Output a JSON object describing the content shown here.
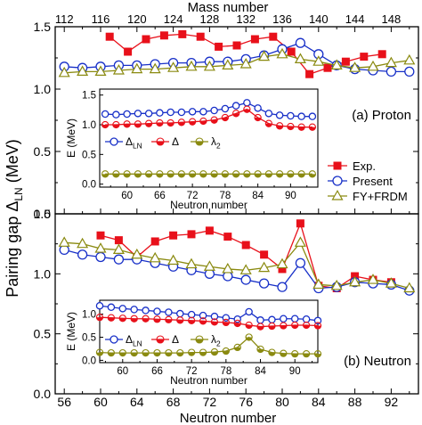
{
  "chart_data": [
    {
      "panel_id": "a",
      "type": "line",
      "panel_label": "(a) Proton",
      "xlabel_top": "Mass number",
      "ylabel": "Pairing gap Δ",
      "ylabel_sub": "LN",
      "ylabel_unit": "(MeV)",
      "xlim": [
        55,
        95
      ],
      "ylim": [
        0,
        1.5
      ],
      "mass_ticks": [
        112,
        116,
        120,
        124,
        128,
        132,
        136,
        140,
        144,
        148
      ],
      "y_ticks": [
        "1.5",
        "1.0",
        "0.5",
        "0.0"
      ],
      "colors": {
        "exp": "#e8101a",
        "present": "#1830c8",
        "fy": "#8a8a10"
      },
      "legend": [
        "Exp.",
        "Present",
        "FY+FRDM"
      ],
      "series": [
        {
          "key": "exp",
          "marker": "square-filled",
          "x": [
            61,
            63,
            65,
            67,
            69,
            71,
            73,
            75,
            77,
            79,
            81,
            83,
            85,
            87,
            89,
            91
          ],
          "y": [
            1.42,
            1.3,
            1.4,
            1.43,
            1.44,
            1.42,
            1.34,
            1.35,
            1.4,
            1.42,
            1.3,
            1.12,
            1.17,
            1.22,
            1.26,
            1.28
          ]
        },
        {
          "key": "present",
          "marker": "circle-open",
          "x": [
            56,
            58,
            60,
            62,
            64,
            66,
            68,
            70,
            72,
            74,
            76,
            78,
            80,
            82,
            84,
            86,
            88,
            90,
            92,
            94
          ],
          "y": [
            1.18,
            1.17,
            1.18,
            1.19,
            1.19,
            1.2,
            1.21,
            1.21,
            1.22,
            1.22,
            1.24,
            1.27,
            1.32,
            1.37,
            1.28,
            1.19,
            1.16,
            1.15,
            1.14,
            1.14
          ]
        },
        {
          "key": "fy",
          "marker": "triangle-open",
          "x": [
            56,
            58,
            60,
            62,
            64,
            66,
            68,
            70,
            72,
            74,
            76,
            78,
            80,
            82,
            84,
            86,
            88,
            90,
            92,
            94
          ],
          "y": [
            1.13,
            1.14,
            1.14,
            1.15,
            1.16,
            1.16,
            1.17,
            1.18,
            1.18,
            1.19,
            1.2,
            1.26,
            1.28,
            1.24,
            1.22,
            1.19,
            1.17,
            1.18,
            1.21,
            1.23
          ]
        }
      ],
      "inset": {
        "ylabel": "E (MeV)",
        "xlabel": "Neutron number",
        "xlim": [
          55,
          95
        ],
        "ylim": [
          -0.05,
          1.6
        ],
        "x_ticks": [
          60,
          66,
          72,
          78,
          84,
          90
        ],
        "y_ticks": [
          "1.5",
          "1.0",
          "0.5",
          "0.0"
        ],
        "legend": [
          "Δ",
          "Δ",
          "λ"
        ],
        "legend_subs": [
          "LN",
          "",
          "2"
        ],
        "series": [
          {
            "key": "present",
            "marker": "circle-open",
            "x": [
              56,
              58,
              60,
              62,
              64,
              66,
              68,
              70,
              72,
              74,
              76,
              78,
              80,
              82,
              84,
              86,
              88,
              90,
              92,
              94
            ],
            "y": [
              1.18,
              1.17,
              1.18,
              1.19,
              1.19,
              1.2,
              1.21,
              1.21,
              1.22,
              1.22,
              1.24,
              1.27,
              1.32,
              1.37,
              1.28,
              1.19,
              1.16,
              1.15,
              1.14,
              1.14
            ]
          },
          {
            "key": "exp",
            "marker": "circle-half",
            "x": [
              56,
              58,
              60,
              62,
              64,
              66,
              68,
              70,
              72,
              74,
              76,
              78,
              80,
              82,
              84,
              86,
              88,
              90,
              92,
              94
            ],
            "y": [
              1.0,
              1.0,
              1.01,
              1.01,
              1.02,
              1.03,
              1.03,
              1.04,
              1.05,
              1.06,
              1.08,
              1.12,
              1.19,
              1.26,
              1.12,
              1.02,
              0.98,
              0.97,
              0.96,
              0.96
            ]
          },
          {
            "key": "fy",
            "marker": "circle-half",
            "x": [
              56,
              58,
              60,
              62,
              64,
              66,
              68,
              70,
              72,
              74,
              76,
              78,
              80,
              82,
              84,
              86,
              88,
              90,
              92,
              94
            ],
            "y": [
              0.17,
              0.17,
              0.17,
              0.17,
              0.17,
              0.17,
              0.17,
              0.17,
              0.17,
              0.17,
              0.17,
              0.17,
              0.17,
              0.17,
              0.17,
              0.17,
              0.17,
              0.17,
              0.17,
              0.17
            ]
          }
        ]
      }
    },
    {
      "panel_id": "b",
      "type": "line",
      "panel_label": "(b) Neutron",
      "xlabel": "Neutron number",
      "xlim": [
        55,
        95
      ],
      "ylim": [
        0,
        1.5
      ],
      "x_ticks": [
        56,
        60,
        64,
        68,
        72,
        76,
        80,
        84,
        88,
        92
      ],
      "y_ticks": [
        "1.5",
        "1.0",
        "0.5",
        "0.0"
      ],
      "colors": {
        "exp": "#e8101a",
        "present": "#1830c8",
        "fy": "#8a8a10"
      },
      "series": [
        {
          "key": "exp",
          "marker": "square-filled",
          "x": [
            60,
            62,
            64,
            66,
            68,
            70,
            72,
            74,
            76,
            78,
            80,
            82,
            84,
            86,
            88,
            90,
            92
          ],
          "y": [
            1.32,
            1.28,
            1.14,
            1.27,
            1.32,
            1.33,
            1.36,
            1.31,
            1.24,
            1.16,
            1.04,
            1.42,
            0.9,
            0.88,
            0.98,
            0.95,
            0.93
          ]
        },
        {
          "key": "present",
          "marker": "circle-open",
          "x": [
            56,
            58,
            60,
            62,
            64,
            66,
            68,
            70,
            72,
            74,
            76,
            78,
            80,
            82,
            84,
            86,
            88,
            90,
            92,
            94
          ],
          "y": [
            1.2,
            1.16,
            1.14,
            1.12,
            1.12,
            1.09,
            1.06,
            1.03,
            1.0,
            0.98,
            0.95,
            0.92,
            0.89,
            1.09,
            0.88,
            0.89,
            0.93,
            0.92,
            0.91,
            0.86
          ]
        },
        {
          "key": "fy",
          "marker": "triangle-open",
          "x": [
            56,
            58,
            60,
            62,
            64,
            66,
            68,
            70,
            72,
            74,
            76,
            78,
            80,
            82,
            84,
            86,
            88,
            90,
            92,
            94
          ],
          "y": [
            1.26,
            1.25,
            1.21,
            1.2,
            1.16,
            1.13,
            1.11,
            1.08,
            1.06,
            1.04,
            1.03,
            1.05,
            1.08,
            1.26,
            0.91,
            0.9,
            0.93,
            0.95,
            0.92,
            0.88
          ]
        }
      ],
      "inset": {
        "ylabel": "E (MeV)",
        "xlabel": "Neutron number",
        "xlim": [
          56,
          94
        ],
        "ylim": [
          -0.05,
          1.3
        ],
        "x_ticks": [
          60,
          66,
          72,
          78,
          84,
          90
        ],
        "y_ticks": [
          "1.0",
          "0.5",
          "0.0"
        ],
        "legend": [
          "Δ",
          "Δ",
          "λ"
        ],
        "legend_subs": [
          "LN",
          "",
          "2"
        ],
        "series": [
          {
            "key": "present",
            "marker": "circle-open",
            "x": [
              56,
              58,
              60,
              62,
              64,
              66,
              68,
              70,
              72,
              74,
              76,
              78,
              80,
              82,
              84,
              86,
              88,
              90,
              92,
              94
            ],
            "y": [
              1.18,
              1.15,
              1.12,
              1.1,
              1.08,
              1.06,
              1.04,
              1.01,
              0.99,
              0.97,
              0.95,
              0.92,
              0.89,
              1.05,
              0.87,
              0.88,
              0.9,
              0.9,
              0.89,
              0.86
            ]
          },
          {
            "key": "exp",
            "marker": "circle-half",
            "x": [
              56,
              58,
              60,
              62,
              64,
              66,
              68,
              70,
              72,
              74,
              76,
              78,
              80,
              82,
              84,
              86,
              88,
              90,
              92,
              94
            ],
            "y": [
              0.93,
              0.92,
              0.91,
              0.9,
              0.9,
              0.89,
              0.88,
              0.87,
              0.86,
              0.85,
              0.83,
              0.82,
              0.8,
              0.76,
              0.73,
              0.74,
              0.75,
              0.76,
              0.76,
              0.75
            ]
          },
          {
            "key": "fy",
            "marker": "circle-half",
            "x": [
              56,
              58,
              60,
              62,
              64,
              66,
              68,
              70,
              72,
              74,
              76,
              78,
              80,
              82,
              84,
              86,
              88,
              90,
              92,
              94
            ],
            "y": [
              0.17,
              0.16,
              0.16,
              0.16,
              0.16,
              0.16,
              0.16,
              0.16,
              0.17,
              0.17,
              0.18,
              0.2,
              0.28,
              0.5,
              0.24,
              0.17,
              0.15,
              0.14,
              0.14,
              0.14
            ]
          }
        ]
      }
    }
  ]
}
